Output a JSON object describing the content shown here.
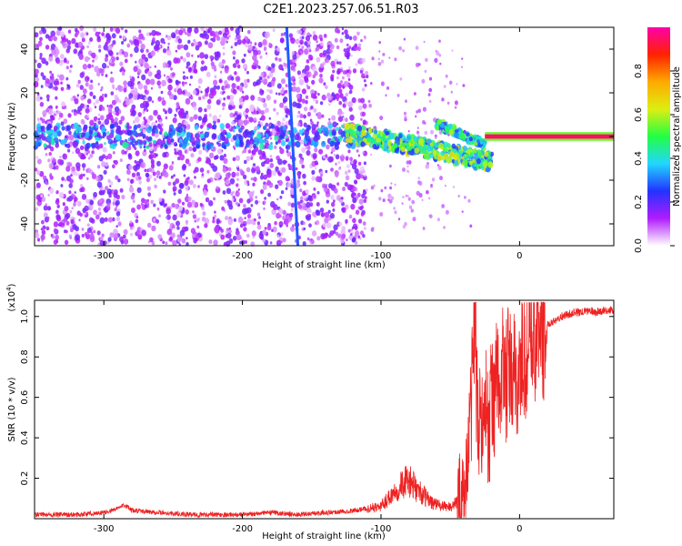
{
  "title": "C2E1.2023.257.06.51.R03",
  "colors": {
    "snr_line": "#ee2222",
    "spectrogram_ramp": [
      "#ffffff",
      "#b01cff",
      "#2233ff",
      "#22d6ff",
      "#22ff44",
      "#ddee11",
      "#ffaa00",
      "#ff2200",
      "#ff00aa"
    ]
  },
  "chart_data": [
    {
      "type": "heatmap",
      "xlabel": "Height of straight line (km)",
      "ylabel": "Frequency (Hz)",
      "xlim": [
        -350,
        68
      ],
      "ylim": [
        -50,
        50
      ],
      "xticks": [
        -300,
        -200,
        -100,
        0
      ],
      "yticks": [
        -40,
        -20,
        0,
        20,
        40
      ],
      "x_tick_labels": [
        "-300",
        "-200",
        "-100",
        "0"
      ],
      "y_tick_labels": [
        "-40",
        "-20",
        "0",
        "20",
        "40"
      ],
      "colorbar": {
        "label": "Normalized spectral amplitude",
        "range": [
          0,
          1
        ],
        "ticks": [
          0.0,
          0.2,
          0.4,
          0.6,
          0.8
        ],
        "tick_labels": [
          "0.0",
          "0.2",
          "0.4",
          "0.6",
          "0.8"
        ]
      },
      "features": [
        {
          "name": "noise",
          "x_range": [
            -350,
            -110
          ],
          "freq_range": [
            -50,
            50
          ],
          "amplitude": 0.15
        },
        {
          "name": "carrier",
          "x_range": [
            -350,
            -120
          ],
          "freq": 0,
          "amplitude": 0.25
        },
        {
          "name": "band",
          "x_range": [
            -125,
            -20
          ],
          "freq_start": 2,
          "freq_end": -12,
          "amplitude": 0.45
        },
        {
          "name": "upper branch",
          "x_range": [
            -60,
            -25
          ],
          "freq_start": 6,
          "freq_end": -4,
          "amplitude": 0.4
        },
        {
          "name": "tone",
          "x_range": [
            -25,
            68
          ],
          "freq": 0,
          "amplitude": 0.95
        },
        {
          "name": "streak",
          "x_start": -168,
          "x_end": -160,
          "freq_start": 50,
          "freq_end": -50
        }
      ]
    },
    {
      "type": "line",
      "xlabel": "Height of straight line (km)",
      "ylabel": "SNR (10 * v/v)",
      "y_scale_label": "(x10",
      "y_scale_exponent": "4",
      "xlim": [
        -350,
        68
      ],
      "ylim": [
        0,
        1.08
      ],
      "xticks": [
        -300,
        -200,
        -100,
        0
      ],
      "yticks": [
        0.2,
        0.4,
        0.6,
        0.8,
        1.0
      ],
      "x_tick_labels": [
        "-300",
        "-200",
        "-100",
        "0"
      ],
      "y_tick_labels": [
        "0.2",
        "0.4",
        "0.6",
        "0.8",
        "1.0"
      ],
      "series": [
        {
          "x": [
            -350,
            -320,
            -300,
            -290,
            -285,
            -280,
            -260,
            -240,
            -220,
            -200,
            -180,
            -160,
            -140,
            -120,
            -110,
            -100,
            -95,
            -90,
            -85,
            -80,
            -75,
            -70,
            -65,
            -60,
            -55,
            -50,
            -45,
            -40,
            -37,
            -35,
            -33,
            -32,
            -31,
            -30,
            -28,
            -26,
            -24,
            -22,
            -20,
            -18,
            -16,
            -14,
            -12,
            -10,
            -8,
            -6,
            -4,
            -2,
            0,
            5,
            10,
            15,
            20,
            25,
            30,
            35,
            40,
            45,
            50,
            55,
            60,
            68
          ],
          "y": [
            0.02,
            0.02,
            0.03,
            0.05,
            0.07,
            0.04,
            0.03,
            0.02,
            0.02,
            0.02,
            0.03,
            0.02,
            0.03,
            0.04,
            0.05,
            0.06,
            0.1,
            0.14,
            0.17,
            0.19,
            0.15,
            0.12,
            0.09,
            0.07,
            0.06,
            0.06,
            0.08,
            0.12,
            0.3,
            0.55,
            0.9,
            1.05,
            0.62,
            0.42,
            0.55,
            0.45,
            0.6,
            0.35,
            0.7,
            0.55,
            0.72,
            0.6,
            0.76,
            0.66,
            0.74,
            0.68,
            0.71,
            0.66,
            0.75,
            0.82,
            0.88,
            0.93,
            0.96,
            0.98,
            1.0,
            1.01,
            1.02,
            1.02,
            1.03,
            1.02,
            1.03,
            1.03
          ]
        }
      ]
    }
  ]
}
